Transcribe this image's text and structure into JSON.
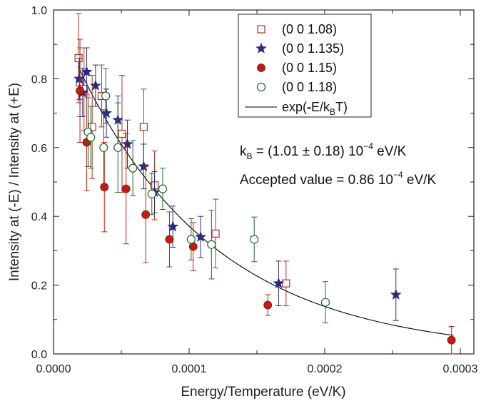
{
  "chart_data": {
    "type": "scatter",
    "xlabel": "Energy/Temperature (eV/K)",
    "ylabel": "Intensity at (-E) / Intensity at (+E)",
    "xlim": [
      0,
      0.00031
    ],
    "ylim": [
      0,
      1.0
    ],
    "x_ticks": [
      "0.0000",
      "0.0001",
      "0.0002",
      "0.0003"
    ],
    "y_ticks": [
      "0.0",
      "0.2",
      "0.4",
      "0.6",
      "0.8",
      "1.0"
    ],
    "grid": false,
    "legend_position": "top-right",
    "series": [
      {
        "name": "(0 0 1.08)",
        "marker": "open-square",
        "color": "#b03020",
        "points": [
          {
            "x": 1.85e-05,
            "y": 0.86,
            "err": 0.13
          },
          {
            "x": 1.95e-05,
            "y": 0.79,
            "err": 0.1
          },
          {
            "x": 2.25e-05,
            "y": 0.77,
            "err": 0.12
          },
          {
            "x": 2.85e-05,
            "y": 0.66,
            "err": 0.15
          },
          {
            "x": 3.55e-05,
            "y": 0.75,
            "err": 0.09
          },
          {
            "x": 5.05e-05,
            "y": 0.64,
            "err": 0.17
          },
          {
            "x": 6.65e-05,
            "y": 0.66,
            "err": 0.11
          },
          {
            "x": 7.45e-05,
            "y": 0.49,
            "err": 0.1
          },
          {
            "x": 0.0001195,
            "y": 0.35,
            "err": 0.1
          },
          {
            "x": 0.0001715,
            "y": 0.205,
            "err": 0.065
          }
        ]
      },
      {
        "name": "(0 0 1.135)",
        "marker": "star",
        "color": "#2a2a80",
        "points": [
          {
            "x": 1.9e-05,
            "y": 0.8,
            "err": 0.06
          },
          {
            "x": 2.15e-05,
            "y": 0.76,
            "err": 0.07
          },
          {
            "x": 2.45e-05,
            "y": 0.82,
            "err": 0.07
          },
          {
            "x": 3.1e-05,
            "y": 0.78,
            "err": 0.06
          },
          {
            "x": 3.9e-05,
            "y": 0.7,
            "err": 0.07
          },
          {
            "x": 4.75e-05,
            "y": 0.68,
            "err": 0.07
          },
          {
            "x": 5.45e-05,
            "y": 0.61,
            "err": 0.07
          },
          {
            "x": 6.65e-05,
            "y": 0.545,
            "err": 0.065
          },
          {
            "x": 7.45e-05,
            "y": 0.47,
            "err": 0.06
          },
          {
            "x": 8.8e-05,
            "y": 0.37,
            "err": 0.06
          },
          {
            "x": 0.0001085,
            "y": 0.34,
            "err": 0.06
          },
          {
            "x": 0.000166,
            "y": 0.205,
            "err": 0.065
          },
          {
            "x": 0.0002525,
            "y": 0.172,
            "err": 0.075
          }
        ]
      },
      {
        "name": "(0 0 1.15)",
        "marker": "filled-circle",
        "color": "#c01e10",
        "points": [
          {
            "x": 1.95e-05,
            "y": 0.765,
            "err": 0.15
          },
          {
            "x": 2.45e-05,
            "y": 0.615,
            "err": 0.14
          },
          {
            "x": 3.75e-05,
            "y": 0.485,
            "err": 0.13
          },
          {
            "x": 5.35e-05,
            "y": 0.48,
            "err": 0.16
          },
          {
            "x": 6.8e-05,
            "y": 0.405,
            "err": 0.14
          },
          {
            "x": 8.55e-05,
            "y": 0.333,
            "err": 0.08
          },
          {
            "x": 0.000103,
            "y": 0.312,
            "err": 0.07
          },
          {
            "x": 0.000158,
            "y": 0.142,
            "err": 0.03
          },
          {
            "x": 0.0002935,
            "y": 0.04,
            "err": 0.04
          }
        ]
      },
      {
        "name": "(0 0 1.18)",
        "marker": "open-circle",
        "color": "#1a6a2a",
        "points": [
          {
            "x": 2.55e-05,
            "y": 0.645,
            "err": 0.1
          },
          {
            "x": 2.75e-05,
            "y": 0.63,
            "err": 0.09
          },
          {
            "x": 3.7e-05,
            "y": 0.6,
            "err": 0.11
          },
          {
            "x": 3.85e-05,
            "y": 0.75,
            "err": 0.08
          },
          {
            "x": 4.75e-05,
            "y": 0.6,
            "err": 0.13
          },
          {
            "x": 5.85e-05,
            "y": 0.54,
            "err": 0.08
          },
          {
            "x": 7.25e-05,
            "y": 0.465,
            "err": 0.06
          },
          {
            "x": 8.05e-05,
            "y": 0.48,
            "err": 0.06
          },
          {
            "x": 0.0001015,
            "y": 0.333,
            "err": 0.06
          },
          {
            "x": 0.0001165,
            "y": 0.318,
            "err": 0.1
          },
          {
            "x": 0.000148,
            "y": 0.333,
            "err": 0.065
          },
          {
            "x": 0.0002005,
            "y": 0.15,
            "err": 0.06
          }
        ]
      }
    ],
    "fit": {
      "name": "exp(-E/kBT)",
      "kB": 0.000101,
      "x_range": [
        1.8e-05,
        0.000295
      ]
    }
  },
  "legend": {
    "entries": [
      {
        "label": "(0 0 1.08)",
        "marker": "open-square",
        "color": "#b03020"
      },
      {
        "label": "(0 0 1.135)",
        "marker": "star",
        "color": "#2a2a80"
      },
      {
        "label": "(0 0 1.15)",
        "marker": "filled-circle",
        "color": "#c01e10"
      },
      {
        "label": "(0 0 1.18)",
        "marker": "open-circle",
        "color": "#1a6a2a"
      }
    ],
    "fit_label_prefix": "exp(",
    "fit_label_minus": "-",
    "fit_label_e": "E/k",
    "fit_label_sub": "B",
    "fit_label_suffix": "T)"
  },
  "annotations": {
    "kb_k": "k",
    "kb_sub": "B",
    "kb_eq": " = (1.01 ± 0.18) 10",
    "kb_exp": "−4",
    "kb_unit": " eV/K",
    "accepted_main": "Accepted value = 0.86 10",
    "accepted_exp": "−4",
    "accepted_unit": " eV/K"
  }
}
